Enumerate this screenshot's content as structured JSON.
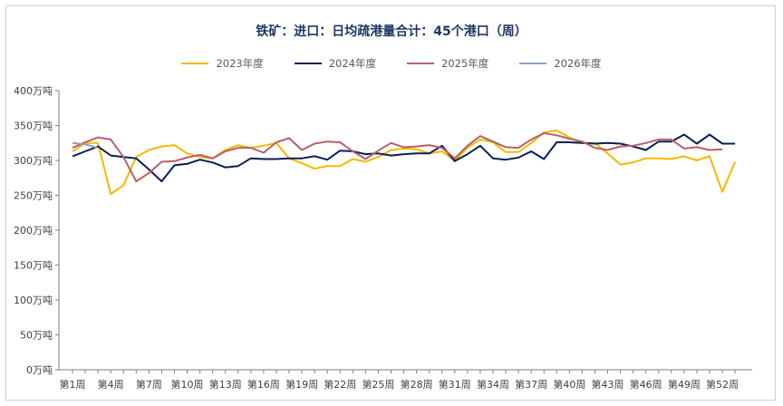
{
  "chart_data": {
    "type": "line",
    "title": "铁矿：进口：日均疏港量合计：45个港口（周）",
    "xlabel": "",
    "ylabel": "",
    "ylim": [
      0,
      400
    ],
    "yticks": [
      "0万吨",
      "50万吨",
      "100万吨",
      "150万吨",
      "200万吨",
      "250万吨",
      "300万吨",
      "350万吨",
      "400万吨"
    ],
    "x_tick_labels": [
      "第1周",
      "第4周",
      "第7周",
      "第10周",
      "第13周",
      "第16周",
      "第19周",
      "第22周",
      "第25周",
      "第28周",
      "第31周",
      "第34周",
      "第37周",
      "第40周",
      "第43周",
      "第46周",
      "第49周",
      "第52周"
    ],
    "grid": false,
    "legend_position": "top",
    "series": [
      {
        "name": "2023年度",
        "color": "#f5b800",
        "values": [
          313,
          325,
          325,
          252,
          264,
          305,
          315,
          320,
          322,
          310,
          305,
          303,
          315,
          322,
          318,
          321,
          325,
          303,
          296,
          288,
          292,
          292,
          302,
          298,
          305,
          315,
          317,
          316,
          310,
          313,
          300,
          318,
          330,
          326,
          312,
          312,
          325,
          340,
          343,
          333,
          325,
          325,
          310,
          294,
          297,
          303,
          303,
          302,
          306,
          300,
          306,
          255,
          298
        ]
      },
      {
        "name": "2024年度",
        "color": "#0b1f54",
        "values": [
          306,
          313,
          320,
          307,
          305,
          303,
          287,
          270,
          293,
          295,
          301,
          297,
          290,
          292,
          303,
          302,
          302,
          303,
          303,
          306,
          301,
          314,
          313,
          309,
          310,
          307,
          309,
          310,
          310,
          321,
          299,
          309,
          321,
          303,
          301,
          304,
          313,
          302,
          326,
          326,
          325,
          324,
          325,
          324,
          320,
          315,
          327,
          327,
          337,
          324,
          337,
          324,
          324
        ]
      },
      {
        "name": "2025年度",
        "color": "#b5616a",
        "values": [
          318,
          326,
          333,
          330,
          305,
          270,
          282,
          298,
          299,
          304,
          308,
          303,
          313,
          318,
          318,
          311,
          326,
          332,
          315,
          324,
          327,
          326,
          313,
          302,
          314,
          325,
          319,
          320,
          322,
          318,
          303,
          321,
          335,
          327,
          319,
          318,
          330,
          339,
          336,
          331,
          327,
          318,
          315,
          320,
          321,
          325,
          330,
          330,
          317,
          319,
          315,
          316
        ]
      },
      {
        "name": "2026年度",
        "color": "#8ca2c8",
        "values": [
          325,
          323,
          318
        ]
      }
    ]
  }
}
